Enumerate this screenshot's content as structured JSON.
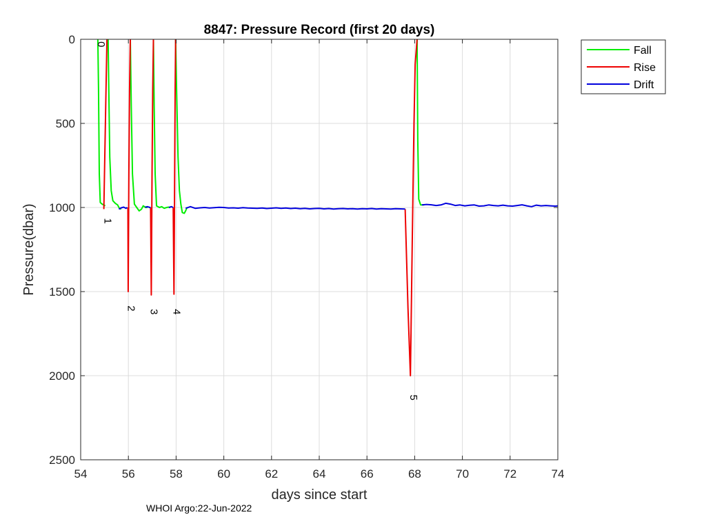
{
  "chart_data": {
    "type": "line",
    "title": "8847: Pressure Record (first 20 days)",
    "xlabel": "days since start",
    "ylabel": "Pressure(dbar)",
    "xlim": [
      54,
      74
    ],
    "ylim": [
      0,
      2500
    ],
    "y_reversed": true,
    "grid": true,
    "x_ticks": [
      54,
      56,
      58,
      60,
      62,
      64,
      66,
      68,
      70,
      72,
      74
    ],
    "y_ticks": [
      0,
      500,
      1000,
      1500,
      2000,
      2500
    ],
    "legend": {
      "placement": "outside-top-right",
      "entries": [
        "Fall",
        "Rise",
        "Drift"
      ]
    },
    "colors": {
      "Fall": "#00ee00",
      "Rise": "#ee0000",
      "Drift": "#0000dd"
    },
    "series": [
      {
        "name": "Fall",
        "segments": [
          [
            [
              54.72,
              0
            ],
            [
              54.75,
              300
            ],
            [
              54.78,
              800
            ],
            [
              54.82,
              970
            ],
            [
              54.9,
              980
            ],
            [
              54.97,
              985
            ],
            [
              55.03,
              990
            ]
          ],
          [
            [
              55.15,
              0
            ],
            [
              55.18,
              300
            ],
            [
              55.22,
              700
            ],
            [
              55.28,
              900
            ],
            [
              55.35,
              960
            ],
            [
              55.45,
              975
            ],
            [
              55.55,
              985
            ],
            [
              55.62,
              1005
            ],
            [
              55.7,
              1010
            ]
          ],
          [
            [
              56.08,
              0
            ],
            [
              56.12,
              400
            ],
            [
              56.17,
              800
            ],
            [
              56.25,
              980
            ],
            [
              56.35,
              1000
            ],
            [
              56.45,
              1020
            ],
            [
              56.55,
              1010
            ],
            [
              56.62,
              990
            ],
            [
              56.72,
              1000
            ],
            [
              56.8,
              1000
            ]
          ],
          [
            [
              57.05,
              0
            ],
            [
              57.08,
              400
            ],
            [
              57.12,
              800
            ],
            [
              57.18,
              990
            ],
            [
              57.3,
              1000
            ],
            [
              57.4,
              995
            ],
            [
              57.5,
              1005
            ],
            [
              57.6,
              1000
            ],
            [
              57.68,
              998
            ],
            [
              57.75,
              1000
            ]
          ],
          [
            [
              57.98,
              0
            ],
            [
              58.02,
              300
            ],
            [
              58.08,
              700
            ],
            [
              58.14,
              900
            ],
            [
              58.2,
              980
            ],
            [
              58.26,
              1030
            ],
            [
              58.34,
              1035
            ],
            [
              58.4,
              1020
            ],
            [
              58.46,
              1000
            ]
          ],
          [
            [
              68.1,
              0
            ],
            [
              68.13,
              600
            ],
            [
              68.17,
              950
            ],
            [
              68.25,
              985
            ],
            [
              68.4,
              985
            ]
          ]
        ]
      },
      {
        "name": "Rise",
        "segments": [
          [
            [
              54.97,
              1010
            ],
            [
              55.05,
              400
            ],
            [
              55.1,
              0
            ]
          ],
          [
            [
              55.98,
              1000
            ],
            [
              55.99,
              1500
            ],
            [
              56.02,
              800
            ],
            [
              56.05,
              300
            ],
            [
              56.08,
              0
            ]
          ],
          [
            [
              56.93,
              1000
            ],
            [
              56.96,
              1520
            ],
            [
              56.99,
              800
            ],
            [
              57.02,
              300
            ],
            [
              57.05,
              0
            ]
          ],
          [
            [
              57.88,
              1000
            ],
            [
              57.91,
              1515
            ],
            [
              57.94,
              800
            ],
            [
              57.96,
              300
            ],
            [
              57.98,
              0
            ]
          ],
          [
            [
              67.6,
              1010
            ],
            [
              67.72,
              1600
            ],
            [
              67.82,
              2000
            ],
            [
              67.9,
              1200
            ],
            [
              67.97,
              500
            ],
            [
              68.02,
              150
            ],
            [
              68.1,
              0
            ]
          ]
        ]
      },
      {
        "name": "Drift",
        "segments": [
          [
            [
              55.6,
              1010
            ],
            [
              55.7,
              1002
            ],
            [
              55.8,
              998
            ],
            [
              55.9,
              1005
            ],
            [
              55.95,
              1000
            ]
          ],
          [
            [
              56.7,
              998
            ],
            [
              56.8,
              995
            ],
            [
              56.9,
              1000
            ],
            [
              56.93,
              998
            ]
          ],
          [
            [
              57.7,
              1000
            ],
            [
              57.8,
              995
            ],
            [
              57.88,
              1000
            ]
          ],
          [
            [
              58.4,
              1005
            ],
            [
              58.6,
              995
            ],
            [
              58.8,
              1005
            ],
            [
              59,
              1002
            ],
            [
              59.2,
              1000
            ],
            [
              59.4,
              1003
            ],
            [
              59.6,
              1001
            ],
            [
              59.8,
              999
            ],
            [
              60,
              1000
            ],
            [
              60.2,
              1003
            ],
            [
              60.4,
              1002
            ],
            [
              60.6,
              1004
            ],
            [
              60.8,
              1001
            ],
            [
              61,
              1003
            ],
            [
              61.2,
              1004
            ],
            [
              61.4,
              1005
            ],
            [
              61.6,
              1003
            ],
            [
              61.8,
              1006
            ],
            [
              62,
              1004
            ],
            [
              62.2,
              1002
            ],
            [
              62.4,
              1005
            ],
            [
              62.6,
              1003
            ],
            [
              62.8,
              1006
            ],
            [
              63,
              1004
            ],
            [
              63.2,
              1007
            ],
            [
              63.4,
              1005
            ],
            [
              63.6,
              1008
            ],
            [
              63.8,
              1006
            ],
            [
              64,
              1005
            ],
            [
              64.2,
              1008
            ],
            [
              64.4,
              1006
            ],
            [
              64.6,
              1009
            ],
            [
              64.8,
              1007
            ],
            [
              65,
              1006
            ],
            [
              65.2,
              1008
            ],
            [
              65.4,
              1007
            ],
            [
              65.6,
              1009
            ],
            [
              65.8,
              1007
            ],
            [
              66,
              1008
            ],
            [
              66.2,
              1006
            ],
            [
              66.4,
              1009
            ],
            [
              66.6,
              1007
            ],
            [
              66.8,
              1008
            ],
            [
              67,
              1009
            ],
            [
              67.2,
              1007
            ],
            [
              67.4,
              1008
            ],
            [
              67.6,
              1009
            ]
          ],
          [
            [
              68.3,
              985
            ],
            [
              68.5,
              982
            ],
            [
              68.7,
              984
            ],
            [
              68.9,
              988
            ],
            [
              69.1,
              985
            ],
            [
              69.3,
              975
            ],
            [
              69.5,
              980
            ],
            [
              69.7,
              988
            ],
            [
              69.9,
              985
            ],
            [
              70.1,
              990
            ],
            [
              70.3,
              987
            ],
            [
              70.5,
              985
            ],
            [
              70.7,
              992
            ],
            [
              70.9,
              990
            ],
            [
              71.1,
              985
            ],
            [
              71.3,
              988
            ],
            [
              71.5,
              990
            ],
            [
              71.7,
              986
            ],
            [
              71.9,
              990
            ],
            [
              72.1,
              992
            ],
            [
              72.3,
              988
            ],
            [
              72.5,
              984
            ],
            [
              72.7,
              990
            ],
            [
              72.9,
              995
            ],
            [
              73.1,
              986
            ],
            [
              73.3,
              990
            ],
            [
              73.5,
              988
            ],
            [
              73.7,
              990
            ],
            [
              73.9,
              992
            ],
            [
              74,
              990
            ]
          ]
        ]
      }
    ],
    "annotations": [
      {
        "text": "0",
        "x": 54.72,
        "y": 30
      },
      {
        "text": "1",
        "x": 55.0,
        "y": 1080
      },
      {
        "text": "2",
        "x": 55.98,
        "y": 1600
      },
      {
        "text": "3",
        "x": 56.93,
        "y": 1620
      },
      {
        "text": "4",
        "x": 57.88,
        "y": 1620
      },
      {
        "text": "5",
        "x": 67.82,
        "y": 2130
      }
    ]
  },
  "footer": "WHOI Argo:22-Jun-2022"
}
